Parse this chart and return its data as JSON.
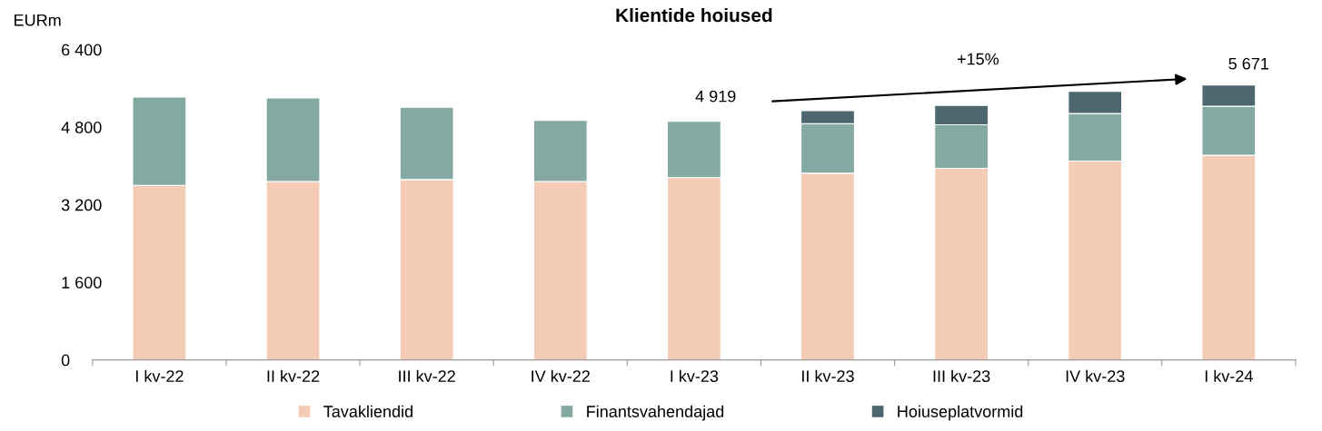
{
  "chart_data": {
    "type": "bar",
    "title": "Klientide hoiused",
    "ylabel": "EURm",
    "stacked": true,
    "categories": [
      "I kv-22",
      "II kv-22",
      "III kv-22",
      "IV kv-22",
      "I kv-23",
      "II kv-23",
      "III kv-23",
      "IV kv-23",
      "I kv-24"
    ],
    "series": [
      {
        "name": "Tavakliendid",
        "color": "#f4cbb4",
        "values": [
          3600,
          3680,
          3720,
          3680,
          3760,
          3850,
          3950,
          4100,
          4220
        ]
      },
      {
        "name": "Finantsvahendajad",
        "color": "#84a9a2",
        "values": [
          1820,
          1720,
          1490,
          1260,
          1160,
          1020,
          900,
          980,
          1010
        ]
      },
      {
        "name": "Hoiuseplatvormid",
        "color": "#4d6670",
        "values": [
          null,
          null,
          null,
          null,
          null,
          270,
          400,
          460,
          440
        ]
      }
    ],
    "ylim": [
      0,
      6400
    ],
    "yticks": [
      0,
      {
        "value": 1600,
        "label": "1 600"
      },
      {
        "value": 3200,
        "label": "3 200"
      },
      {
        "value": 4800,
        "label": "4 800"
      },
      {
        "value": 6400,
        "label": "6 400"
      }
    ],
    "grid": false,
    "legend": "bottom",
    "annotations": [
      "4 919",
      "5 671",
      "+15%"
    ]
  }
}
